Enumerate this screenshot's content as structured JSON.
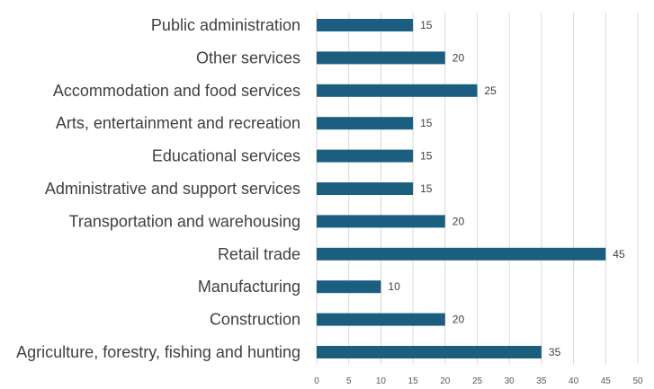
{
  "chart_data": {
    "type": "bar",
    "orientation": "horizontal",
    "title": "",
    "xlabel": "",
    "ylabel": "",
    "categories": [
      "Agriculture, forestry, fishing and hunting",
      "Construction",
      "Manufacturing",
      "Retail trade",
      "Transportation and warehousing",
      "Administrative and support services",
      "Educational services",
      "Arts, entertainment and recreation",
      "Accommodation and food services",
      "Other services",
      "Public administration"
    ],
    "values": [
      35,
      20,
      10,
      45,
      20,
      15,
      15,
      15,
      25,
      20,
      15
    ],
    "xlim": [
      0,
      50
    ],
    "ticks": [
      "0",
      "5",
      "10",
      "15",
      "20",
      "25",
      "30",
      "35",
      "40",
      "45",
      "50"
    ],
    "data_labels": true,
    "grid": "vertical",
    "legend": "none",
    "bar_color": "#1b5e80",
    "grid_color": "#d9d9d9"
  }
}
